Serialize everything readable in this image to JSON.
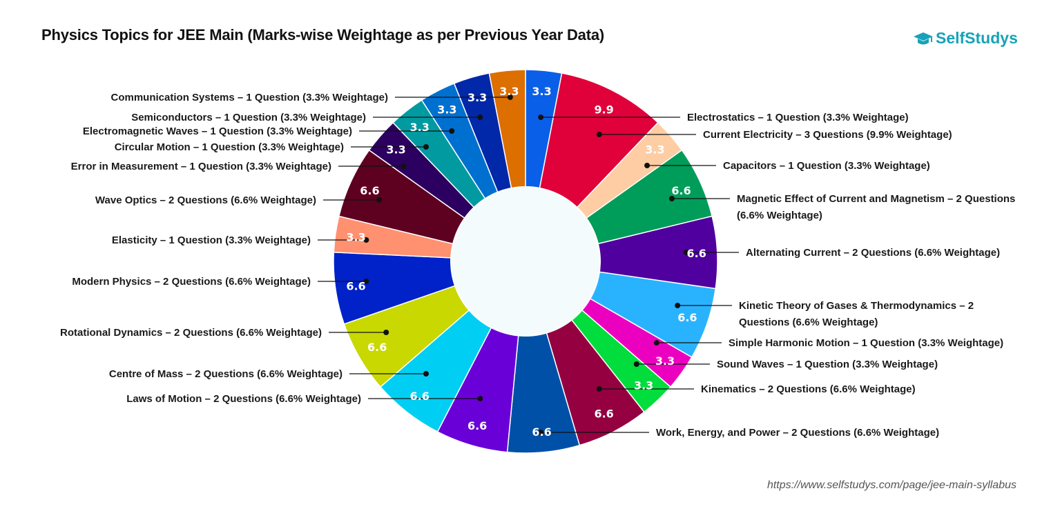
{
  "header": {
    "title": "Physics Topics for JEE Main (Marks-wise Weightage as per Previous Year Data)",
    "brand": "SelfStudys",
    "brand_icon": "graduation-cap-icon",
    "brand_color": "#17a2b8"
  },
  "footer": {
    "source_url": "https://www.selfstudys.com/page/jee-main-syllabus"
  },
  "chart_data": {
    "type": "pie",
    "donut": true,
    "title": "Physics Topics for JEE Main (Marks-wise Weightage as per Previous Year Data)",
    "slices": [
      {
        "label": "Electrostatics – 1 Question (3.3% Weightage)",
        "value": 3.3,
        "color": "#0a5fe8",
        "side": "right"
      },
      {
        "label": "Current Electricity – 3 Questions (9.9% Weightage)",
        "value": 9.9,
        "color": "#e0003a",
        "side": "right"
      },
      {
        "label": "Capacitors –  1 Question (3.3% Weightage)",
        "value": 3.3,
        "color": "#ffcda3",
        "side": "right"
      },
      {
        "label": "Magnetic Effect of Current and Magnetism – 2 Questions (6.6% Weightage)",
        "label_lines": [
          "Magnetic Effect of Current and Magnetism – 2 Questions",
          "(6.6% Weightage)"
        ],
        "value": 6.6,
        "color": "#009c5a",
        "side": "right"
      },
      {
        "label": "Alternating Current – 2 Questions (6.6% Weightage)",
        "value": 6.6,
        "color": "#4f009e",
        "side": "right"
      },
      {
        "label": "Kinetic Theory of Gases & Thermodynamics – 2 Questions (6.6% Weightage)",
        "label_lines": [
          "Kinetic Theory of Gases & Thermodynamics – 2",
          "Questions (6.6% Weightage)"
        ],
        "value": 6.6,
        "color": "#29b3ff",
        "side": "right"
      },
      {
        "label": "Simple Harmonic Motion – 1 Question (3.3% Weightage)",
        "value": 3.3,
        "color": "#ec00c0",
        "side": "right"
      },
      {
        "label": "Sound Waves – 1 Question (3.3% Weightage)",
        "value": 3.3,
        "color": "#00dd3c",
        "side": "right"
      },
      {
        "label": "Kinematics – 2 Questions (6.6% Weightage)",
        "value": 6.6,
        "color": "#940040",
        "side": "right"
      },
      {
        "label": "Work, Energy, and Power – 2 Questions (6.6% Weightage)",
        "value": 6.6,
        "color": "#0050a8",
        "side": "right"
      },
      {
        "label": "Laws of Motion – 2 Questions (6.6% Weightage)",
        "value": 6.6,
        "color": "#6a00d8",
        "side": "left"
      },
      {
        "label": "Centre of Mass – 2 Questions (6.6% Weightage)",
        "value": 6.6,
        "color": "#00cef2",
        "side": "left"
      },
      {
        "label": "Rotational Dynamics – 2 Questions (6.6% Weightage)",
        "value": 6.6,
        "color": "#c8d800",
        "side": "left"
      },
      {
        "label": "Modern Physics – 2 Questions (6.6% Weightage)",
        "value": 6.6,
        "color": "#0022c8",
        "side": "left"
      },
      {
        "label": "Elasticity – 1 Question (3.3% Weightage)",
        "value": 3.3,
        "color": "#ff9070",
        "side": "left"
      },
      {
        "label": "Wave Optics – 2 Questions (6.6% Weightage)",
        "value": 6.6,
        "color": "#5e0020",
        "side": "left"
      },
      {
        "label": "Error in Measurement – 1 Question (3.3% Weightage)",
        "value": 3.3,
        "color": "#2c0060",
        "side": "left"
      },
      {
        "label": "Circular Motion – 1 Question (3.3% Weightage)",
        "value": 3.3,
        "color": "#009aa0",
        "side": "left"
      },
      {
        "label": "Electromagnetic Waves – 1 Question (3.3% Weightage)",
        "value": 3.3,
        "color": "#0070d0",
        "side": "left"
      },
      {
        "label": "Semiconductors – 1 Question (3.3% Weightage)",
        "value": 3.3,
        "color": "#0028a8",
        "side": "left"
      },
      {
        "label": "Communication Systems – 1 Question (3.3% Weightage)",
        "value": 3.3,
        "color": "#dd6e00",
        "side": "left"
      }
    ]
  }
}
